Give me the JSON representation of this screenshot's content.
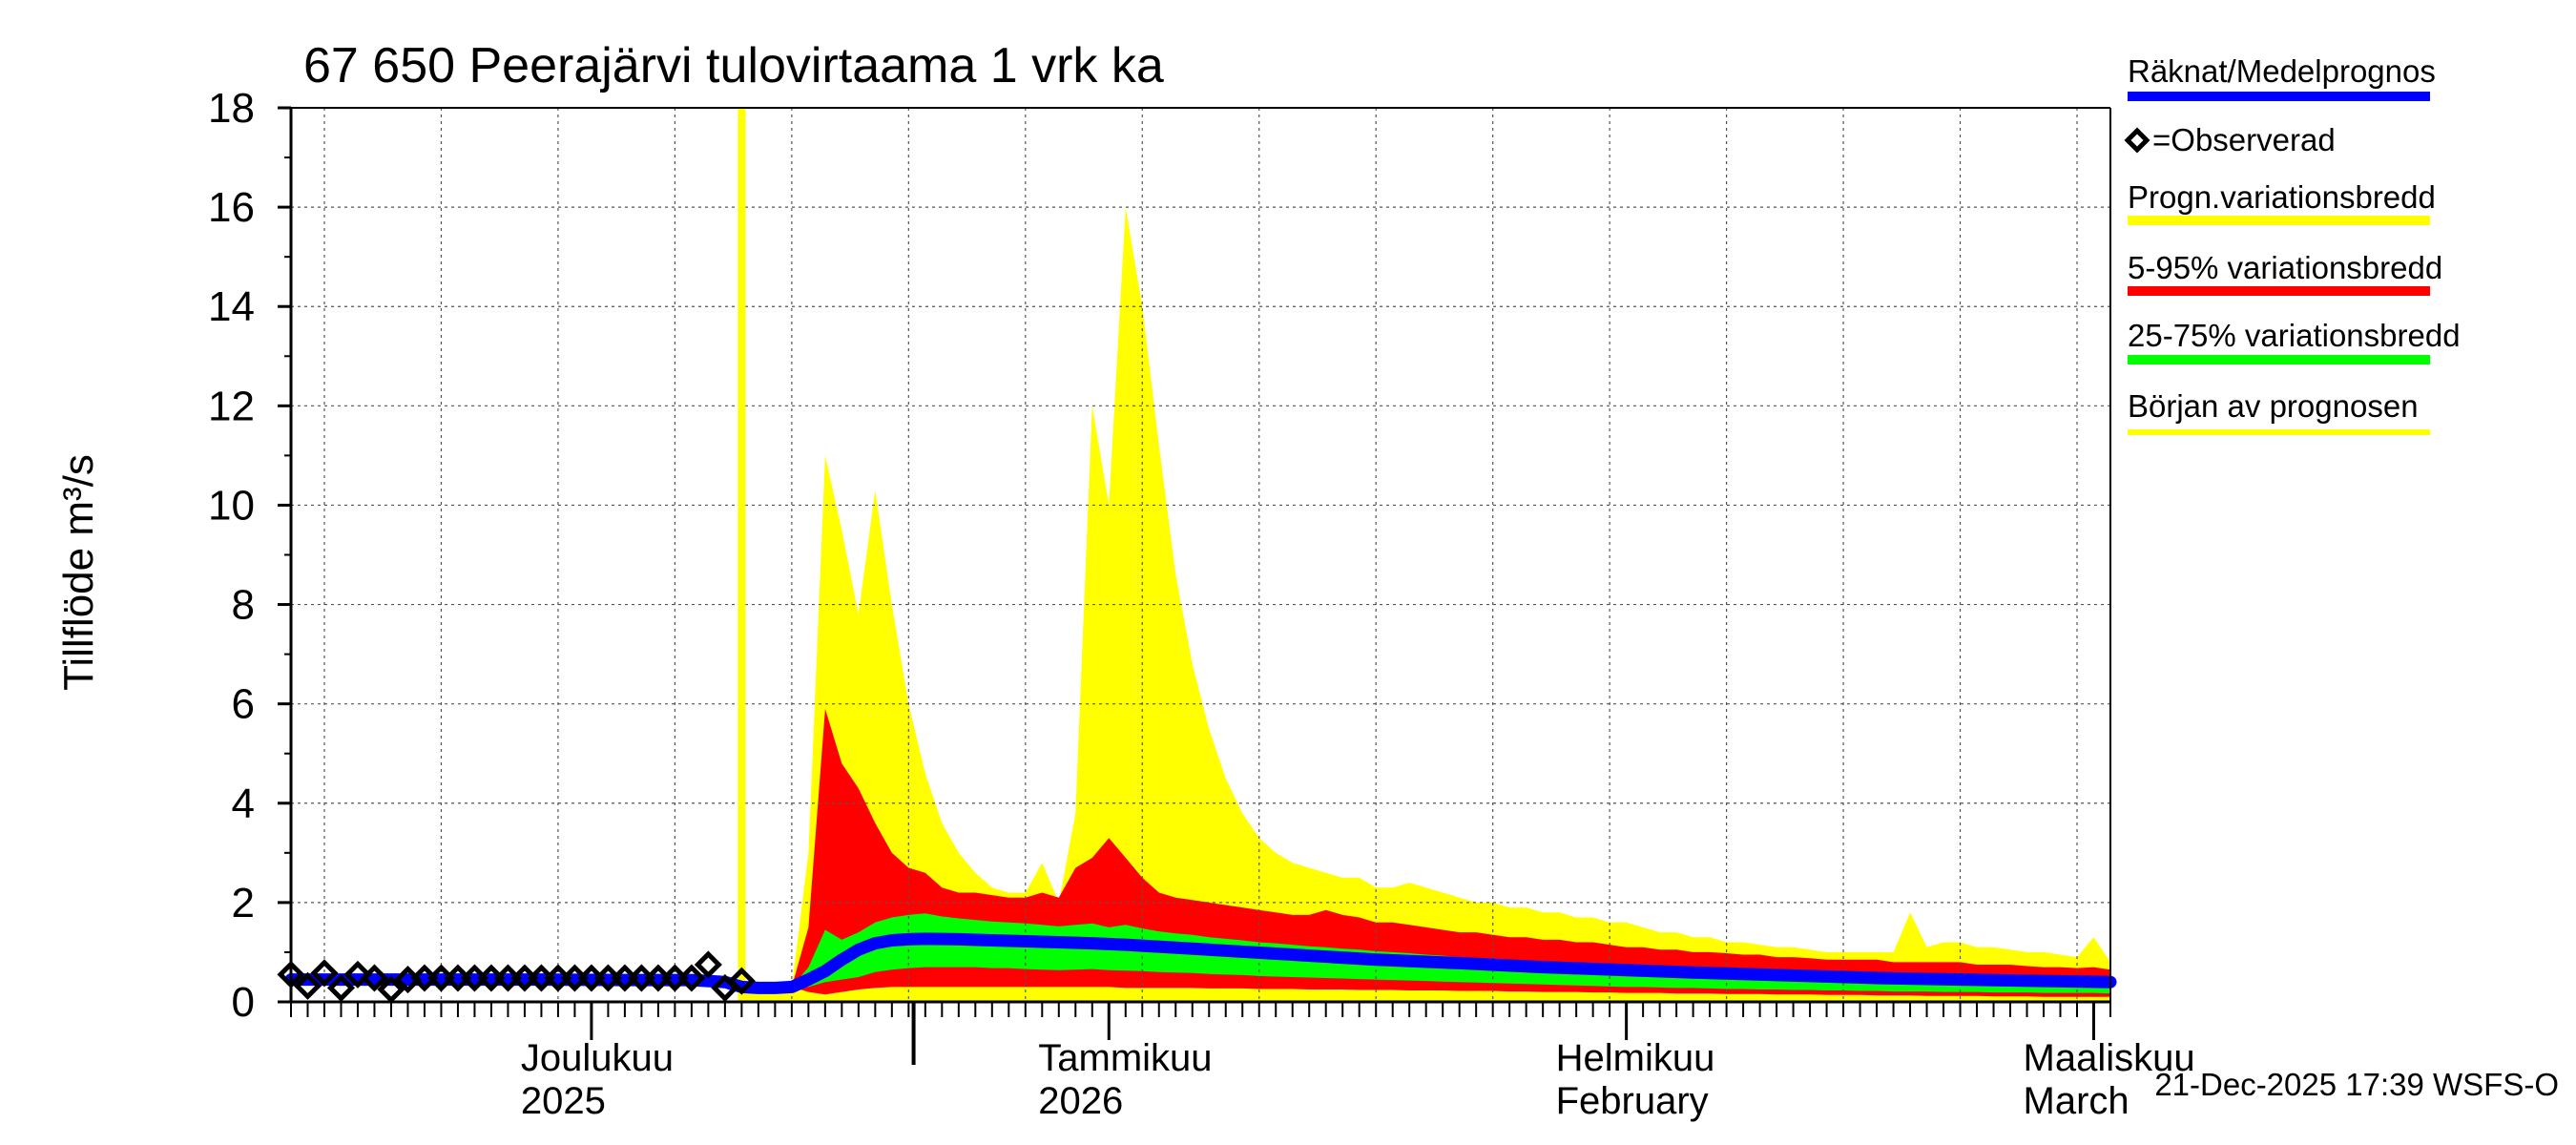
{
  "chart_data": {
    "type": "area",
    "title": "67 650 Peerajärvi tulovirtaama 1 vrk ka",
    "ylabel": "Tillflöde m³/s",
    "ylim": [
      0,
      18
    ],
    "yticks": [
      "0",
      "2",
      "4",
      "6",
      "8",
      "10",
      "12",
      "14",
      "16",
      "18"
    ],
    "x_range_days": [
      0,
      109
    ],
    "x_origin_date": "2025-11-13",
    "month_labels": [
      {
        "line1": "Joulukuu",
        "line2": "2025",
        "day": 18
      },
      {
        "line1": "Tammikuu",
        "line2": "2026",
        "day": 49
      },
      {
        "line1": "Helmikuu",
        "line2": "February",
        "day": 80
      },
      {
        "line1": "Maaliskuu",
        "line2": "March",
        "day": 108
      }
    ],
    "month_boundaries": [
      18,
      49,
      80,
      108
    ],
    "year_boundary": 37.3,
    "forecast_start_day": 27.0,
    "grid": true,
    "legend": {
      "placement": "right",
      "items": [
        {
          "label": "Räknat/Medelprognos",
          "color": "#0000ff"
        },
        {
          "label": "=Observerad",
          "color": "#000000",
          "marker": "diamond"
        },
        {
          "label": "Progn.variationsbredd",
          "color": "#ffff00"
        },
        {
          "label": "5-95% variationsbredd",
          "color": "#ff0000"
        },
        {
          "label": "25-75% variationsbredd",
          "color": "#00ff00"
        },
        {
          "label": "Början av prognosen",
          "color": "#ffff00"
        }
      ]
    },
    "footer": "21-Dec-2025 17:39 WSFS-O",
    "series": {
      "observed": {
        "x": [
          0,
          1,
          2,
          3,
          4,
          5,
          6,
          7,
          8,
          9,
          10,
          11,
          12,
          13,
          14,
          15,
          16,
          17,
          18,
          19,
          20,
          21,
          22,
          23,
          24,
          25,
          26,
          27
        ],
        "y": [
          0.55,
          0.32,
          0.58,
          0.28,
          0.55,
          0.48,
          0.25,
          0.45,
          0.48,
          0.48,
          0.48,
          0.48,
          0.48,
          0.48,
          0.48,
          0.48,
          0.48,
          0.48,
          0.48,
          0.48,
          0.48,
          0.48,
          0.48,
          0.48,
          0.48,
          0.75,
          0.28,
          0.42
        ]
      },
      "mean": {
        "x": [
          0,
          5,
          10,
          15,
          20,
          24,
          26,
          27,
          28,
          29,
          30,
          31,
          32,
          33,
          34,
          35,
          36,
          37,
          38,
          40,
          42,
          44,
          46,
          48,
          50,
          55,
          60,
          65,
          70,
          75,
          80,
          85,
          90,
          95,
          100,
          105,
          109
        ],
        "y": [
          0.45,
          0.45,
          0.45,
          0.45,
          0.44,
          0.44,
          0.4,
          0.3,
          0.28,
          0.28,
          0.3,
          0.45,
          0.62,
          0.85,
          1.05,
          1.18,
          1.24,
          1.26,
          1.27,
          1.26,
          1.24,
          1.22,
          1.2,
          1.18,
          1.15,
          1.05,
          0.95,
          0.85,
          0.78,
          0.7,
          0.64,
          0.58,
          0.53,
          0.48,
          0.45,
          0.42,
          0.4
        ]
      },
      "prog_band": {
        "x": [
          27,
          28,
          29,
          30,
          31,
          32,
          33,
          34,
          35,
          36,
          37,
          38,
          39,
          40,
          41,
          42,
          43,
          44,
          45,
          46,
          47,
          48,
          49,
          50,
          51,
          52,
          53,
          54,
          55,
          56,
          57,
          58,
          59,
          60,
          61,
          62,
          63,
          64,
          65,
          66,
          67,
          68,
          69,
          70,
          71,
          72,
          73,
          74,
          75,
          76,
          77,
          78,
          79,
          80,
          81,
          82,
          83,
          84,
          85,
          86,
          87,
          88,
          89,
          90,
          91,
          92,
          93,
          94,
          95,
          96,
          97,
          98,
          99,
          100,
          101,
          102,
          103,
          104,
          105,
          106,
          107,
          108,
          109
        ],
        "upper": [
          0.3,
          0.3,
          0.3,
          0.3,
          3.0,
          11.0,
          9.5,
          7.8,
          10.3,
          8.0,
          6.0,
          4.6,
          3.6,
          3.0,
          2.6,
          2.3,
          2.2,
          2.2,
          2.8,
          2.0,
          3.8,
          12.0,
          10.0,
          16.0,
          14.0,
          11.2,
          8.6,
          6.8,
          5.5,
          4.5,
          3.8,
          3.3,
          3.0,
          2.8,
          2.7,
          2.6,
          2.5,
          2.5,
          2.3,
          2.3,
          2.4,
          2.3,
          2.2,
          2.1,
          2.0,
          2.0,
          1.9,
          1.9,
          1.8,
          1.8,
          1.7,
          1.7,
          1.6,
          1.6,
          1.5,
          1.4,
          1.4,
          1.3,
          1.3,
          1.2,
          1.2,
          1.15,
          1.1,
          1.1,
          1.05,
          1.0,
          1.0,
          1.0,
          1.0,
          1.0,
          1.8,
          1.1,
          1.2,
          1.2,
          1.1,
          1.1,
          1.05,
          1.0,
          1.0,
          0.95,
          0.9,
          1.3,
          0.8
        ],
        "lower": [
          0,
          0,
          0,
          0,
          0,
          0,
          0,
          0,
          0,
          0,
          0,
          0,
          0,
          0,
          0,
          0,
          0,
          0,
          0,
          0,
          0,
          0,
          0,
          0,
          0,
          0,
          0,
          0,
          0,
          0,
          0,
          0,
          0,
          0,
          0,
          0,
          0,
          0,
          0,
          0,
          0,
          0,
          0,
          0,
          0,
          0,
          0,
          0,
          0,
          0,
          0,
          0,
          0,
          0,
          0,
          0,
          0,
          0,
          0,
          0,
          0,
          0,
          0,
          0,
          0,
          0,
          0,
          0,
          0,
          0,
          0,
          0,
          0,
          0,
          0,
          0,
          0,
          0,
          0,
          0,
          0,
          0,
          0
        ]
      },
      "p5_95": {
        "x": [
          27,
          28,
          29,
          30,
          31,
          32,
          33,
          34,
          35,
          36,
          37,
          38,
          39,
          40,
          41,
          42,
          43,
          44,
          45,
          46,
          47,
          48,
          49,
          50,
          51,
          52,
          53,
          54,
          55,
          56,
          57,
          58,
          59,
          60,
          61,
          62,
          63,
          64,
          65,
          66,
          67,
          68,
          69,
          70,
          71,
          72,
          73,
          74,
          75,
          76,
          77,
          78,
          79,
          80,
          81,
          82,
          83,
          84,
          85,
          86,
          87,
          88,
          89,
          90,
          91,
          92,
          93,
          94,
          95,
          96,
          97,
          98,
          99,
          100,
          101,
          102,
          103,
          104,
          105,
          106,
          107,
          108,
          109
        ],
        "upper": [
          0.3,
          0.3,
          0.3,
          0.3,
          1.5,
          5.9,
          4.8,
          4.3,
          3.6,
          3.0,
          2.7,
          2.6,
          2.3,
          2.2,
          2.2,
          2.15,
          2.1,
          2.1,
          2.2,
          2.1,
          2.7,
          2.9,
          3.3,
          2.9,
          2.5,
          2.2,
          2.1,
          2.05,
          2.0,
          1.95,
          1.9,
          1.85,
          1.8,
          1.75,
          1.75,
          1.85,
          1.75,
          1.7,
          1.6,
          1.6,
          1.55,
          1.5,
          1.45,
          1.4,
          1.4,
          1.35,
          1.3,
          1.3,
          1.25,
          1.25,
          1.2,
          1.2,
          1.15,
          1.1,
          1.1,
          1.05,
          1.05,
          1.0,
          1.0,
          0.98,
          0.95,
          0.95,
          0.9,
          0.9,
          0.88,
          0.85,
          0.85,
          0.85,
          0.85,
          0.8,
          0.8,
          0.8,
          0.8,
          0.8,
          0.75,
          0.75,
          0.75,
          0.72,
          0.7,
          0.7,
          0.68,
          0.7,
          0.65
        ],
        "lower": [
          0.3,
          0.3,
          0.3,
          0.3,
          0.2,
          0.15,
          0.2,
          0.25,
          0.28,
          0.3,
          0.3,
          0.3,
          0.3,
          0.3,
          0.3,
          0.3,
          0.3,
          0.3,
          0.3,
          0.3,
          0.3,
          0.3,
          0.3,
          0.28,
          0.28,
          0.28,
          0.28,
          0.28,
          0.27,
          0.27,
          0.27,
          0.26,
          0.26,
          0.26,
          0.25,
          0.25,
          0.25,
          0.24,
          0.24,
          0.24,
          0.23,
          0.23,
          0.23,
          0.22,
          0.22,
          0.22,
          0.21,
          0.21,
          0.2,
          0.2,
          0.2,
          0.19,
          0.19,
          0.18,
          0.18,
          0.18,
          0.17,
          0.17,
          0.17,
          0.16,
          0.16,
          0.16,
          0.15,
          0.15,
          0.15,
          0.14,
          0.14,
          0.14,
          0.13,
          0.13,
          0.13,
          0.12,
          0.12,
          0.12,
          0.12,
          0.11,
          0.11,
          0.11,
          0.1,
          0.1,
          0.1,
          0.1,
          0.1
        ]
      },
      "p25_75": {
        "x": [
          27,
          28,
          29,
          30,
          31,
          32,
          33,
          34,
          35,
          36,
          37,
          38,
          39,
          40,
          41,
          42,
          43,
          44,
          45,
          46,
          47,
          48,
          49,
          50,
          51,
          52,
          53,
          54,
          55,
          56,
          57,
          58,
          59,
          60,
          61,
          62,
          63,
          64,
          65,
          66,
          67,
          68,
          69,
          70,
          71,
          72,
          73,
          74,
          75,
          76,
          77,
          78,
          79,
          80,
          81,
          82,
          83,
          84,
          85,
          86,
          87,
          88,
          89,
          90,
          91,
          92,
          93,
          94,
          95,
          96,
          97,
          98,
          99,
          100,
          101,
          102,
          103,
          104,
          105,
          106,
          107,
          108,
          109
        ],
        "upper": [
          0.3,
          0.3,
          0.3,
          0.3,
          0.7,
          1.45,
          1.25,
          1.4,
          1.6,
          1.7,
          1.75,
          1.78,
          1.72,
          1.68,
          1.65,
          1.62,
          1.6,
          1.58,
          1.55,
          1.52,
          1.55,
          1.58,
          1.5,
          1.55,
          1.48,
          1.42,
          1.38,
          1.35,
          1.3,
          1.27,
          1.24,
          1.2,
          1.18,
          1.15,
          1.12,
          1.1,
          1.07,
          1.05,
          1.02,
          1.0,
          0.98,
          0.95,
          0.93,
          0.9,
          0.88,
          0.86,
          0.84,
          0.82,
          0.8,
          0.78,
          0.76,
          0.74,
          0.72,
          0.7,
          0.68,
          0.66,
          0.64,
          0.63,
          0.62,
          0.6,
          0.59,
          0.58,
          0.57,
          0.56,
          0.55,
          0.54,
          0.53,
          0.52,
          0.51,
          0.5,
          0.5,
          0.49,
          0.48,
          0.48,
          0.47,
          0.46,
          0.46,
          0.45,
          0.45,
          0.44,
          0.44,
          0.44,
          0.43
        ],
        "lower": [
          0.3,
          0.3,
          0.3,
          0.3,
          0.3,
          0.4,
          0.45,
          0.5,
          0.6,
          0.65,
          0.68,
          0.7,
          0.7,
          0.7,
          0.7,
          0.68,
          0.68,
          0.66,
          0.65,
          0.64,
          0.65,
          0.66,
          0.64,
          0.63,
          0.62,
          0.6,
          0.59,
          0.58,
          0.56,
          0.55,
          0.54,
          0.52,
          0.51,
          0.5,
          0.49,
          0.48,
          0.47,
          0.46,
          0.45,
          0.44,
          0.43,
          0.42,
          0.41,
          0.4,
          0.39,
          0.38,
          0.37,
          0.36,
          0.35,
          0.34,
          0.33,
          0.32,
          0.31,
          0.3,
          0.3,
          0.29,
          0.28,
          0.28,
          0.27,
          0.26,
          0.26,
          0.25,
          0.25,
          0.24,
          0.24,
          0.23,
          0.23,
          0.22,
          0.22,
          0.21,
          0.21,
          0.21,
          0.2,
          0.2,
          0.2,
          0.19,
          0.19,
          0.19,
          0.18,
          0.18,
          0.18,
          0.18,
          0.17
        ]
      }
    }
  }
}
